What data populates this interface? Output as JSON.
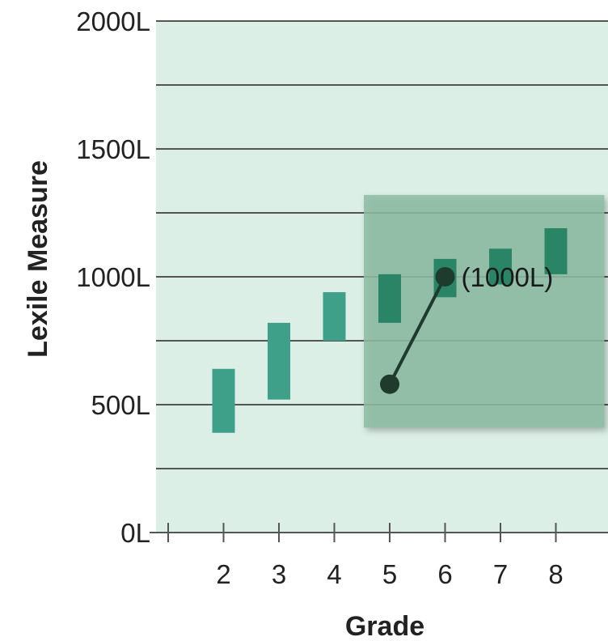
{
  "chart_data": {
    "type": "bar",
    "xlabel": "Grade",
    "ylabel": "Lexile Measure",
    "categories": [
      "2",
      "3",
      "4",
      "5",
      "6",
      "7",
      "8"
    ],
    "ranges": [
      {
        "grade": "2",
        "low": 390,
        "high": 640
      },
      {
        "grade": "3",
        "low": 520,
        "high": 820
      },
      {
        "grade": "4",
        "low": 750,
        "high": 940
      },
      {
        "grade": "5",
        "low": 820,
        "high": 1010
      },
      {
        "grade": "6",
        "low": 920,
        "high": 1070
      },
      {
        "grade": "7",
        "low": 970,
        "high": 1110
      },
      {
        "grade": "8",
        "low": 1010,
        "high": 1190
      }
    ],
    "ylim": [
      0,
      2000
    ],
    "yticks": [
      {
        "value": 0,
        "label": "0L"
      },
      {
        "value": 500,
        "label": "500L"
      },
      {
        "value": 1000,
        "label": "1000L"
      },
      {
        "value": 1500,
        "label": "1500L"
      },
      {
        "value": 2000,
        "label": "2000L"
      }
    ],
    "gridlines": [
      250,
      500,
      750,
      1000,
      1250,
      1500,
      1750,
      2000
    ],
    "highlight": {
      "from_grade": "5",
      "to_grade": "8",
      "y_from": 410,
      "y_to": 1320
    },
    "growth_path": [
      {
        "grade": "5",
        "value": 580
      },
      {
        "grade": "6",
        "value": 1000
      }
    ],
    "annotation": {
      "text": "(1000L)",
      "grade": "6",
      "value": 1000
    },
    "colors": {
      "plot_background": "#dcefe7",
      "bar": "#3fa08a",
      "bar_highlight": "#2a8566",
      "highlight_box": "#8cbca3",
      "gridline": "#555555",
      "growth_line": "#1e3b2e"
    }
  }
}
